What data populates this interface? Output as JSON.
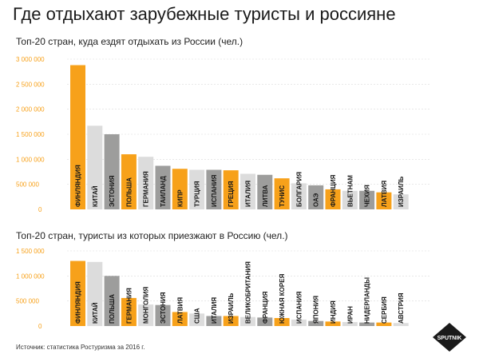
{
  "title": "Где отдыхают зарубежные туристы и россияне",
  "source": "Источник: статистика Ростуризма за 2016 г.",
  "logo_text": "SPUTNIK",
  "colors": {
    "highlight": "#f7a11a",
    "light": "#dcdcdc",
    "dark": "#9d9d9c",
    "tick": "#f7a11a",
    "grid": "#d9d9d9",
    "bar_text": "#1a1a1a"
  },
  "chart_data": [
    {
      "type": "bar",
      "title": "Топ-20 стран, куда ездят отдыхать из России (чел.)",
      "ylim": [
        0,
        3000000
      ],
      "yticks": [
        500000,
        1000000,
        1500000,
        2000000,
        2500000,
        3000000
      ],
      "ytick_labels": [
        "500 000",
        "1 000 000",
        "1 500 000",
        "2 000 000",
        "2 500 000",
        "3 000 000"
      ],
      "zero_label": "0",
      "categories": [
        "ФИНЛЯНДИЯ",
        "КИТАЙ",
        "ЭСТОНИЯ",
        "ПОЛЬША",
        "ГЕРМАНИЯ",
        "ТАИЛАНД",
        "КИПР",
        "ТУРЦИЯ",
        "ИСПАНИЯ",
        "ГРЕЦИЯ",
        "ИТАЛИЯ",
        "ЛИТВА",
        "ТУНИС",
        "БОЛГАРИЯ",
        "ОАЭ",
        "ФРАНЦИЯ",
        "ВЬЕТНАМ",
        "ЧЕХИЯ",
        "ЛАТВИЯ",
        "ИЗРАИЛЬ"
      ],
      "values": [
        2880000,
        1670000,
        1500000,
        1100000,
        1050000,
        870000,
        810000,
        790000,
        790000,
        780000,
        710000,
        690000,
        620000,
        520000,
        480000,
        400000,
        370000,
        370000,
        340000,
        300000
      ],
      "bar_colors": [
        "highlight",
        "light",
        "dark",
        "highlight",
        "light",
        "dark",
        "highlight",
        "light",
        "dark",
        "highlight",
        "light",
        "dark",
        "highlight",
        "light",
        "dark",
        "highlight",
        "light",
        "dark",
        "highlight",
        "light"
      ]
    },
    {
      "type": "bar",
      "title": "Топ-20 стран, туристы из которых приезжают в Россию (чел.)",
      "ylim": [
        0,
        1500000
      ],
      "yticks": [
        500000,
        1000000,
        1500000
      ],
      "ytick_labels": [
        "500 000",
        "1 000 000",
        "1 500 000"
      ],
      "zero_label": "0",
      "categories": [
        "ФИНЛЯНДИЯ",
        "КИТАЙ",
        "ПОЛЬША",
        "ГЕРМАНИЯ",
        "МОНГОЛИЯ",
        "ЭСТОНИЯ",
        "ЛАТВИЯ",
        "США",
        "ИТАЛИЯ",
        "ИЗРАИЛЬ",
        "ВЕЛИКОБРИТАНИЯ",
        "ФРАНЦИЯ",
        "ЮЖНАЯ КОРЕЯ",
        "ИСПАНИЯ",
        "ЯПОНИЯ",
        "ИНДИЯ",
        "ИРАН",
        "НИДЕРЛАНДЫ",
        "СЕРБИЯ",
        "АВСТРИЯ"
      ],
      "values": [
        1300000,
        1280000,
        1000000,
        560000,
        430000,
        420000,
        280000,
        250000,
        200000,
        200000,
        180000,
        170000,
        160000,
        130000,
        100000,
        90000,
        80000,
        70000,
        70000,
        60000
      ],
      "bar_colors": [
        "highlight",
        "light",
        "dark",
        "highlight",
        "light",
        "dark",
        "highlight",
        "light",
        "dark",
        "highlight",
        "light",
        "dark",
        "highlight",
        "light",
        "dark",
        "highlight",
        "light",
        "dark",
        "highlight",
        "light"
      ]
    }
  ]
}
